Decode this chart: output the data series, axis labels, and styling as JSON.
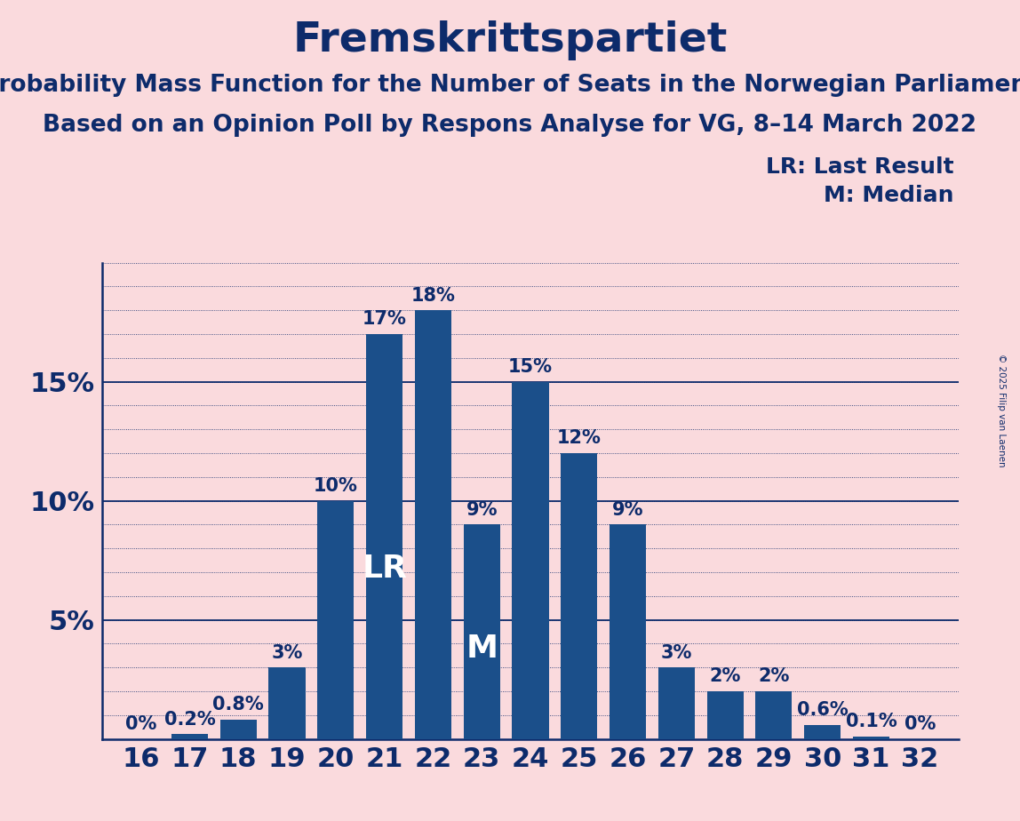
{
  "title": "Fremskrittspartiet",
  "subtitle1": "Probability Mass Function for the Number of Seats in the Norwegian Parliament",
  "subtitle2": "Based on an Opinion Poll by Respons Analyse for VG, 8–14 March 2022",
  "copyright": "© 2025 Filip van Laenen",
  "legend_lr": "LR: Last Result",
  "legend_m": "M: Median",
  "background_color": "#FADADD",
  "bar_color": "#1B4F8A",
  "text_color": "#0D2B6B",
  "seats": [
    16,
    17,
    18,
    19,
    20,
    21,
    22,
    23,
    24,
    25,
    26,
    27,
    28,
    29,
    30,
    31,
    32
  ],
  "probabilities": [
    0.0,
    0.2,
    0.8,
    3.0,
    10.0,
    17.0,
    18.0,
    9.0,
    15.0,
    12.0,
    9.0,
    3.0,
    2.0,
    2.0,
    0.6,
    0.1,
    0.0
  ],
  "labels": [
    "0%",
    "0.2%",
    "0.8%",
    "3%",
    "10%",
    "17%",
    "18%",
    "9%",
    "15%",
    "12%",
    "9%",
    "3%",
    "2%",
    "2%",
    "0.6%",
    "0.1%",
    "0%"
  ],
  "lr_seat": 21,
  "median_seat": 23,
  "ylim": [
    0,
    20
  ],
  "yticks": [
    0,
    5,
    10,
    15,
    20
  ],
  "ytick_labels": [
    "",
    "5%",
    "10%",
    "15%",
    ""
  ],
  "title_fontsize": 34,
  "subtitle_fontsize": 19,
  "bar_label_fontsize": 15,
  "tick_fontsize": 22,
  "lr_m_fontsize": 26,
  "legend_fontsize": 18
}
